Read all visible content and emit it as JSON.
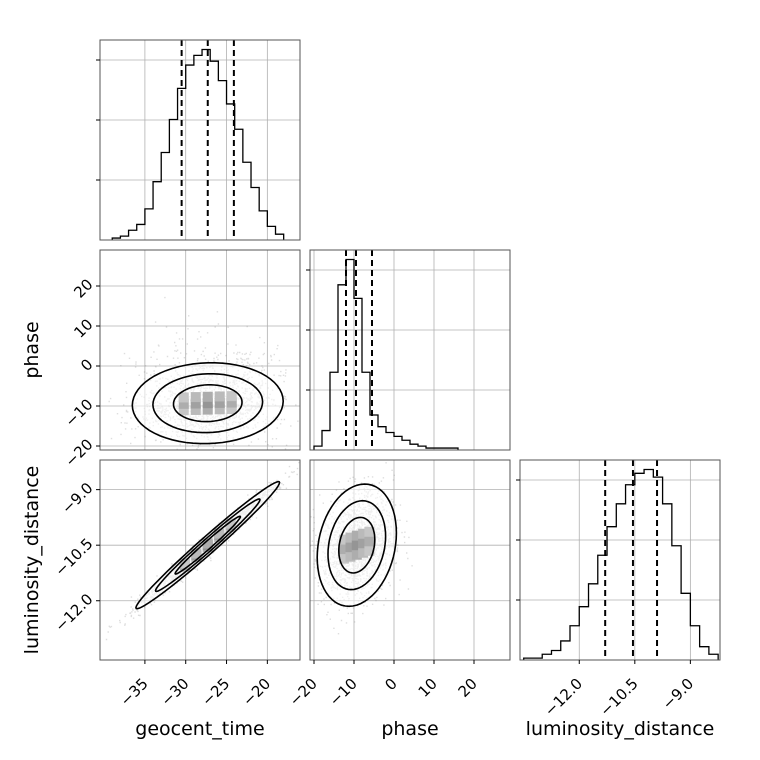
{
  "chart_data": {
    "type": "corner",
    "parameters": [
      "geocent_time",
      "phase",
      "luminosity_distance"
    ],
    "axis_labels": {
      "geocent_time": "geocent_time",
      "phase": "phase",
      "luminosity_distance": "luminosity_distance"
    },
    "ranges": {
      "geocent_time": [
        -40.5,
        -16.0
      ],
      "phase": [
        -21.0,
        29.0
      ],
      "luminosity_distance": [
        -13.6,
        -8.2
      ]
    },
    "ticks": {
      "geocent_time": [
        -35,
        -30,
        -25,
        -20
      ],
      "phase": [
        -20,
        -10,
        0,
        10,
        20
      ],
      "luminosity_distance": [
        -12.0,
        -10.5,
        -9.0
      ]
    },
    "tick_labels": {
      "geocent_time": [
        "−35",
        "−30",
        "−25",
        "−20"
      ],
      "phase": [
        "−20",
        "−10",
        "0",
        "10",
        "20"
      ],
      "luminosity_distance": [
        "−12.0",
        "−10.5",
        "−9.0"
      ]
    },
    "quantiles": {
      "geocent_time": [
        -30.5,
        -27.3,
        -24.1
      ],
      "phase": [
        -12.0,
        -9.5,
        -5.5
      ],
      "luminosity_distance": [
        -11.3,
        -10.55,
        -9.9
      ]
    },
    "histograms": {
      "geocent_time": {
        "edges": [
          -39,
          -38,
          -37,
          -36,
          -35,
          -34,
          -33,
          -32,
          -31,
          -30,
          -29,
          -28,
          -27,
          -26,
          -25,
          -24,
          -23,
          -22,
          -21,
          -20,
          -19,
          -18
        ],
        "counts": [
          1,
          2,
          5,
          8,
          16,
          30,
          45,
          62,
          78,
          90,
          95,
          98,
          92,
          82,
          70,
          57,
          40,
          27,
          15,
          7,
          3
        ]
      },
      "phase": {
        "edges": [
          -20,
          -18,
          -16,
          -14,
          -12,
          -10,
          -8,
          -6,
          -4,
          -2,
          0,
          2,
          4,
          6,
          8,
          10,
          12,
          14,
          16
        ],
        "counts": [
          2,
          10,
          40,
          85,
          98,
          78,
          40,
          18,
          12,
          9,
          7,
          5,
          3,
          2,
          1,
          1,
          1,
          1
        ]
      },
      "luminosity_distance": {
        "edges": [
          -13.5,
          -13.25,
          -13.0,
          -12.75,
          -12.5,
          -12.25,
          -12.0,
          -11.75,
          -11.5,
          -11.25,
          -11.0,
          -10.75,
          -10.5,
          -10.25,
          -10.0,
          -9.75,
          -9.5,
          -9.25,
          -9.0,
          -8.75,
          -8.5,
          -8.25
        ],
        "counts": [
          1,
          1,
          3,
          5,
          10,
          18,
          28,
          40,
          55,
          70,
          82,
          92,
          98,
          100,
          96,
          82,
          60,
          35,
          18,
          7,
          3
        ]
      }
    },
    "pairs": [
      {
        "x": "geocent_time",
        "y": "phase",
        "mean": [
          -27.3,
          -9.3
        ],
        "sd": [
          4.2,
          4.6
        ],
        "rho": 0.05,
        "skew_y": 0.8
      },
      {
        "x": "geocent_time",
        "y": "luminosity_distance",
        "mean": [
          -27.3,
          -10.5
        ],
        "sd": [
          4.0,
          0.78
        ],
        "rho": 0.985,
        "skew_y": 0
      },
      {
        "x": "phase",
        "y": "luminosity_distance",
        "mean": [
          -9.3,
          -10.5
        ],
        "sd": [
          4.5,
          0.75
        ],
        "rho": 0.2,
        "skew_y": 0
      }
    ],
    "grid": true,
    "colors": {
      "line": "#000000",
      "grid": "#b0b0b0",
      "points": "#888888"
    }
  }
}
